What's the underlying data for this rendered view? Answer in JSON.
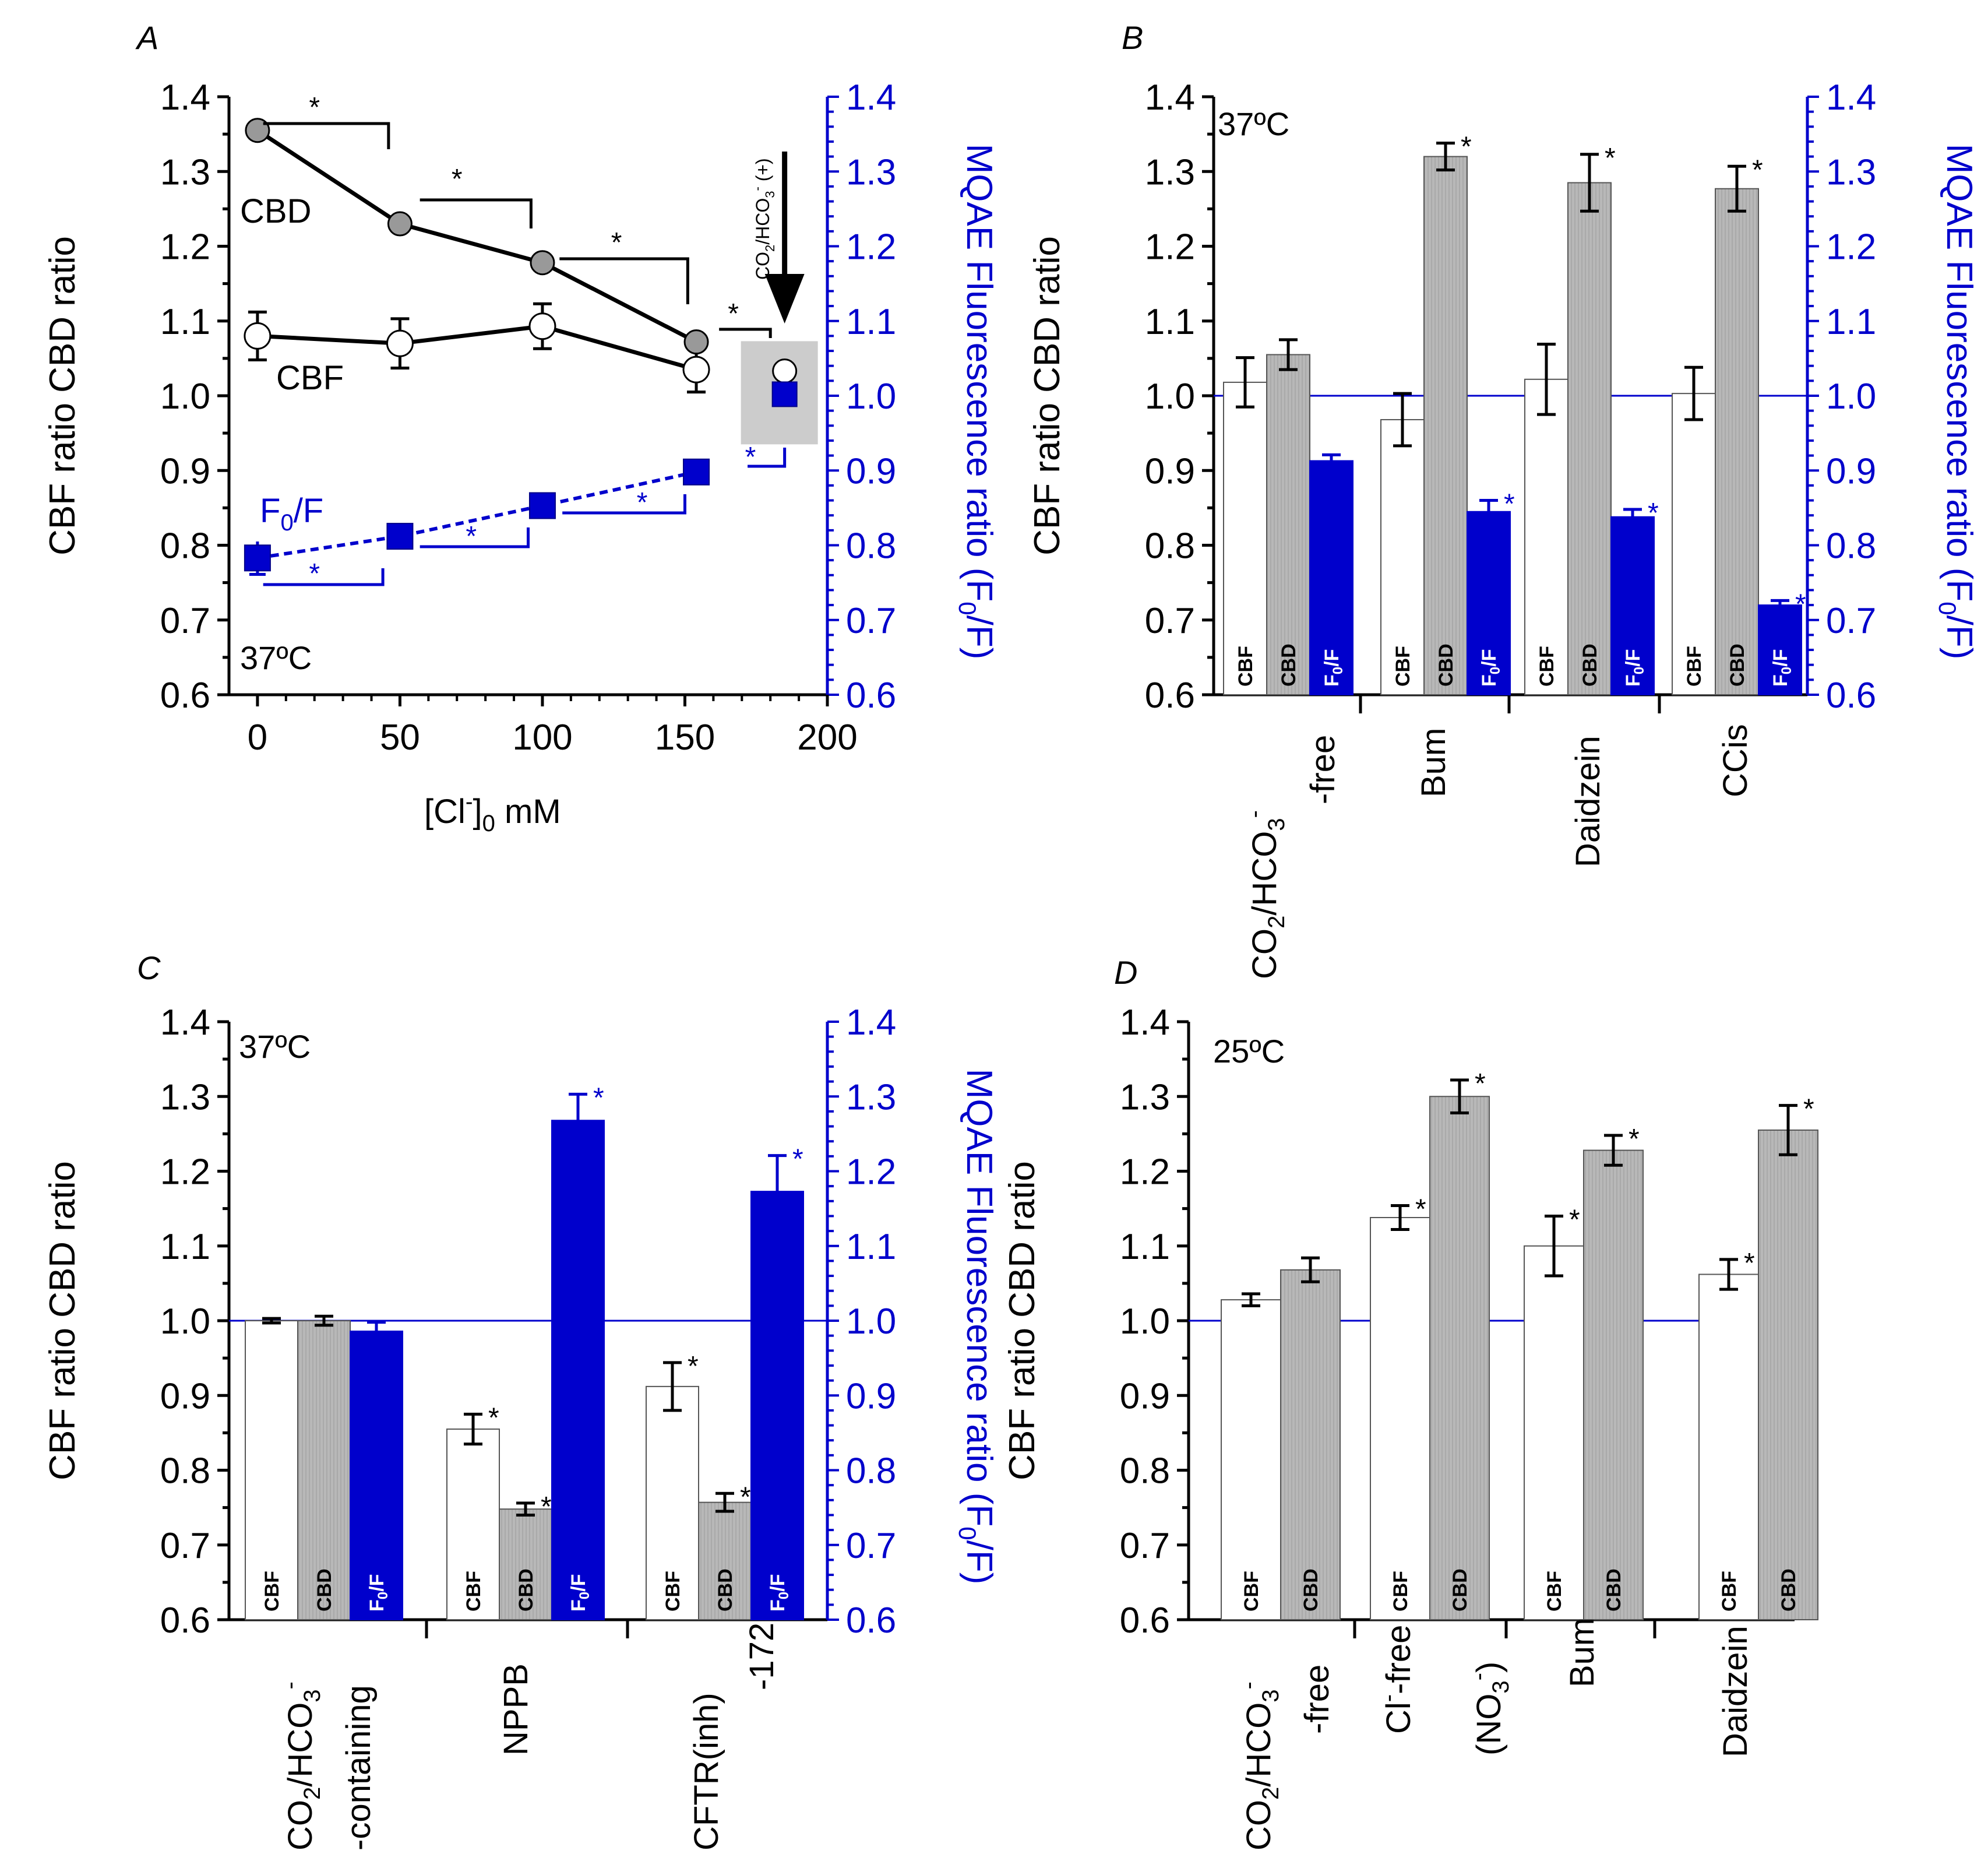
{
  "colors": {
    "black": "#000000",
    "blue": "#0000cc",
    "gray": "#b0b0b0",
    "lightgray": "#cccccc",
    "white": "#ffffff"
  },
  "shared": {
    "left_axis_label": "CBF ratio CBD ratio",
    "right_axis_label": "MQAE Fluorescence ratio (F",
    "right_axis_label_sub": "0",
    "right_axis_label_end": "/F)",
    "ticks": [
      "0.6",
      "0.7",
      "0.8",
      "0.9",
      "1.0",
      "1.1",
      "1.2",
      "1.3",
      "1.4"
    ],
    "ticks_right": [
      "0.6",
      "0.7",
      "0.8",
      "0.9",
      "1.0",
      "1.1",
      "1.2",
      "1.3",
      "1.4"
    ],
    "sig": "*",
    "lbl_cbf": "CBF",
    "lbl_cbd": "CBD",
    "lbl_f": "F",
    "lbl_f_sub": "0",
    "lbl_f_end": "/F"
  },
  "chart_data": [
    {
      "panel": "A",
      "type": "line",
      "temperature": "37ºC",
      "x": [
        0,
        50,
        100,
        154
      ],
      "xticks": [
        "0",
        "50",
        "100",
        "150",
        "200"
      ],
      "xlim": [
        -10,
        200
      ],
      "ylim": [
        0.6,
        1.4
      ],
      "xlabel_pre": "[Cl",
      "xlabel_sup": "-",
      "xlabel_post": "]",
      "xlabel_sub": "0",
      "xlabel_end": " mM",
      "series": [
        {
          "name": "CBD",
          "values": [
            1.355,
            1.23,
            1.178,
            1.072
          ],
          "errors": [
            0,
            0,
            0,
            0
          ]
        },
        {
          "name": "CBF",
          "values": [
            1.08,
            1.07,
            1.093,
            1.035
          ],
          "errors": [
            0.032,
            0.033,
            0.03,
            0.03
          ]
        },
        {
          "name": "F",
          "name_sub": "0",
          "name_end": "/F",
          "values": [
            0.783,
            0.812,
            0.853,
            0.898
          ],
          "errors": [
            0.022,
            0.015,
            0.008,
            0.008
          ]
        }
      ],
      "co2_points": {
        "x": 185,
        "cbf": 1.033,
        "f0f": 1.002
      },
      "co2_label": "CO",
      "co2_label_sub": "2",
      "co2_label_mid": "/HCO",
      "co2_label_sub2": "3",
      "co2_label_sup": "-",
      "co2_label_end": " (+)"
    },
    {
      "panel": "B",
      "type": "bar",
      "temperature": "37ºC",
      "ylim": [
        0.6,
        1.4
      ],
      "groups": [
        {
          "label": "CO2/HCO3- -free",
          "cbf": 1.018,
          "cbf_err": 0.033,
          "cbd": 1.055,
          "cbd_err": 0.02,
          "f0f": 0.913,
          "f0f_err": 0.008,
          "sig": [
            false,
            false,
            false
          ]
        },
        {
          "label": "Bum",
          "cbf": 0.968,
          "cbf_err": 0.035,
          "cbd": 1.32,
          "cbd_err": 0.018,
          "f0f": 0.845,
          "f0f_err": 0.015,
          "sig": [
            false,
            true,
            true
          ]
        },
        {
          "label": "Daidzein",
          "cbf": 1.022,
          "cbf_err": 0.047,
          "cbd": 1.285,
          "cbd_err": 0.038,
          "f0f": 0.838,
          "f0f_err": 0.01,
          "sig": [
            false,
            true,
            true
          ]
        },
        {
          "label": "CCis",
          "cbf": 1.003,
          "cbf_err": 0.035,
          "cbd": 1.277,
          "cbd_err": 0.03,
          "f0f": 0.72,
          "f0f_err": 0.006,
          "sig": [
            false,
            true,
            true
          ]
        }
      ],
      "xlabels": {
        "g1_line1": "CO",
        "g1_sub1": "2",
        "g1_mid": "/HCO",
        "g1_sub2": "3",
        "g1_sup": "-",
        "g1_line2": "-free",
        "g2": "Bum",
        "g3": "Daidzein",
        "g4": "CCis"
      }
    },
    {
      "panel": "C",
      "type": "bar",
      "temperature": "37ºC",
      "ylim": [
        0.6,
        1.4
      ],
      "groups": [
        {
          "label": "CO2/HCO3- -containing",
          "cbf": 1.0,
          "cbf_err": 0.003,
          "cbd": 1.0,
          "cbd_err": 0.006,
          "f0f": 0.986,
          "f0f_err": 0.012,
          "sig": [
            false,
            false,
            false
          ]
        },
        {
          "label": "NPPB",
          "cbf": 0.855,
          "cbf_err": 0.02,
          "cbd": 0.748,
          "cbd_err": 0.008,
          "f0f": 1.268,
          "f0f_err": 0.035,
          "sig": [
            true,
            true,
            true
          ]
        },
        {
          "label": "CFTR(inh)-172",
          "cbf": 0.912,
          "cbf_err": 0.032,
          "cbd": 0.757,
          "cbd_err": 0.012,
          "f0f": 1.173,
          "f0f_err": 0.048,
          "sig": [
            true,
            true,
            true
          ]
        }
      ],
      "xlabels": {
        "g1_line1": "CO",
        "g1_sub1": "2",
        "g1_mid": "/HCO",
        "g1_sub2": "3",
        "g1_sup": "-",
        "g1_line2": "-containing",
        "g2": "NPPB",
        "g3_line1": "CFTR(inh)",
        "g3_line2": "-172"
      }
    },
    {
      "panel": "D",
      "type": "bar",
      "temperature": "25ºC",
      "ylim": [
        0.6,
        1.4
      ],
      "groups": [
        {
          "label": "CO2/HCO3- -free",
          "cbf": 1.028,
          "cbf_err": 0.008,
          "cbd": 1.068,
          "cbd_err": 0.016,
          "sig": [
            false,
            false
          ]
        },
        {
          "label": "Cl- -free (NO3-)",
          "cbf": 1.138,
          "cbf_err": 0.016,
          "cbd": 1.3,
          "cbd_err": 0.022,
          "sig": [
            true,
            true
          ]
        },
        {
          "label": "Bum",
          "cbf": 1.1,
          "cbf_err": 0.04,
          "cbd": 1.228,
          "cbd_err": 0.02,
          "sig": [
            true,
            true
          ]
        },
        {
          "label": "Daidzein",
          "cbf": 1.062,
          "cbf_err": 0.02,
          "cbd": 1.255,
          "cbd_err": 0.033,
          "sig": [
            true,
            true
          ]
        }
      ],
      "xlabels": {
        "g1_line1": "CO",
        "g1_sub1": "2",
        "g1_mid": "/HCO",
        "g1_sub2": "3",
        "g1_sup": "-",
        "g1_line2": "-free",
        "g2_line1": "Cl",
        "g2_sup": "-",
        "g2_line1_end": "-free",
        "g2_line2": "(NO",
        "g2_sub": "3",
        "g2_sup2": "-",
        "g2_line2_end": ")",
        "g3": "Bum",
        "g4": "Daidzein"
      }
    }
  ]
}
